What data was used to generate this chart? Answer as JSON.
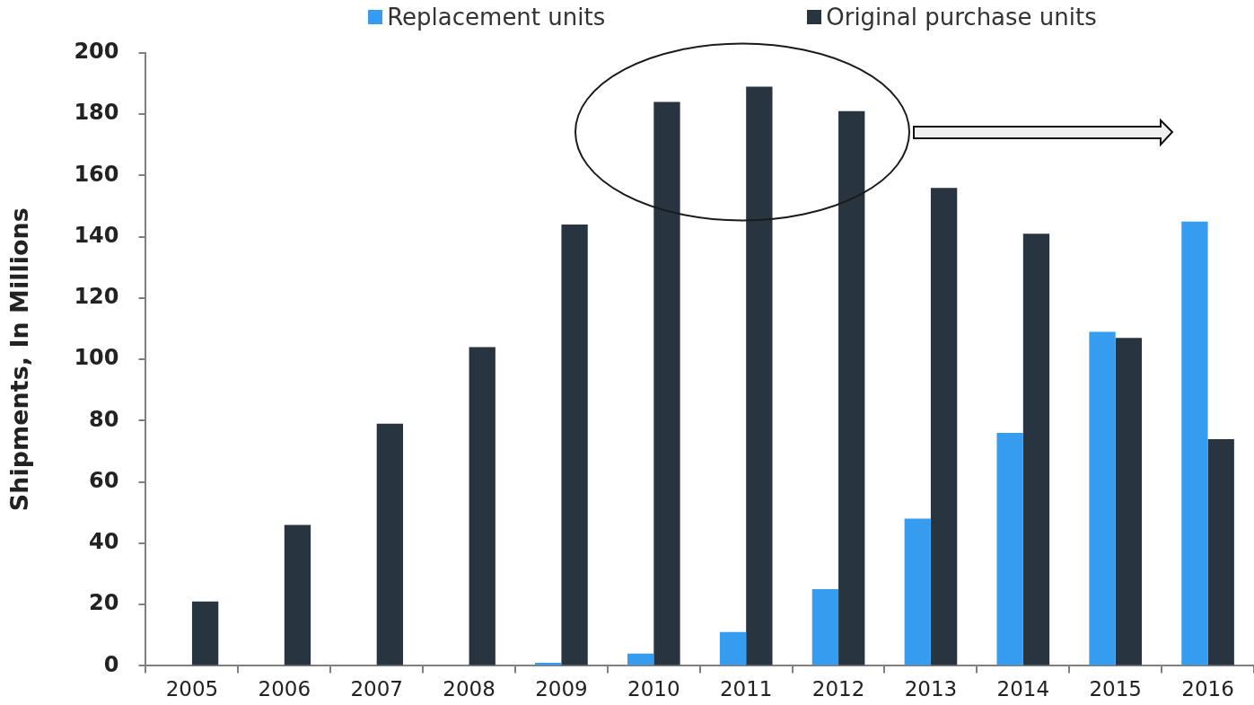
{
  "chart_data": {
    "type": "bar",
    "ylabel": "Shipments, In Millions",
    "categories": [
      "2005",
      "2006",
      "2007",
      "2008",
      "2009",
      "2010",
      "2011",
      "2012",
      "2013",
      "2014",
      "2015",
      "2016"
    ],
    "series": [
      {
        "name": "Replacement units",
        "color": "#359cf0",
        "values": [
          null,
          null,
          null,
          null,
          1,
          4,
          11,
          25,
          48,
          76,
          109,
          145
        ]
      },
      {
        "name": "Original purchase units",
        "color": "#283440",
        "values": [
          21,
          46,
          79,
          104,
          144,
          184,
          189,
          181,
          156,
          141,
          107,
          74
        ]
      }
    ],
    "ylim": [
      0,
      200
    ],
    "yticks": [
      0,
      20,
      40,
      60,
      80,
      100,
      120,
      140,
      160,
      180,
      200
    ],
    "legend": "top"
  }
}
